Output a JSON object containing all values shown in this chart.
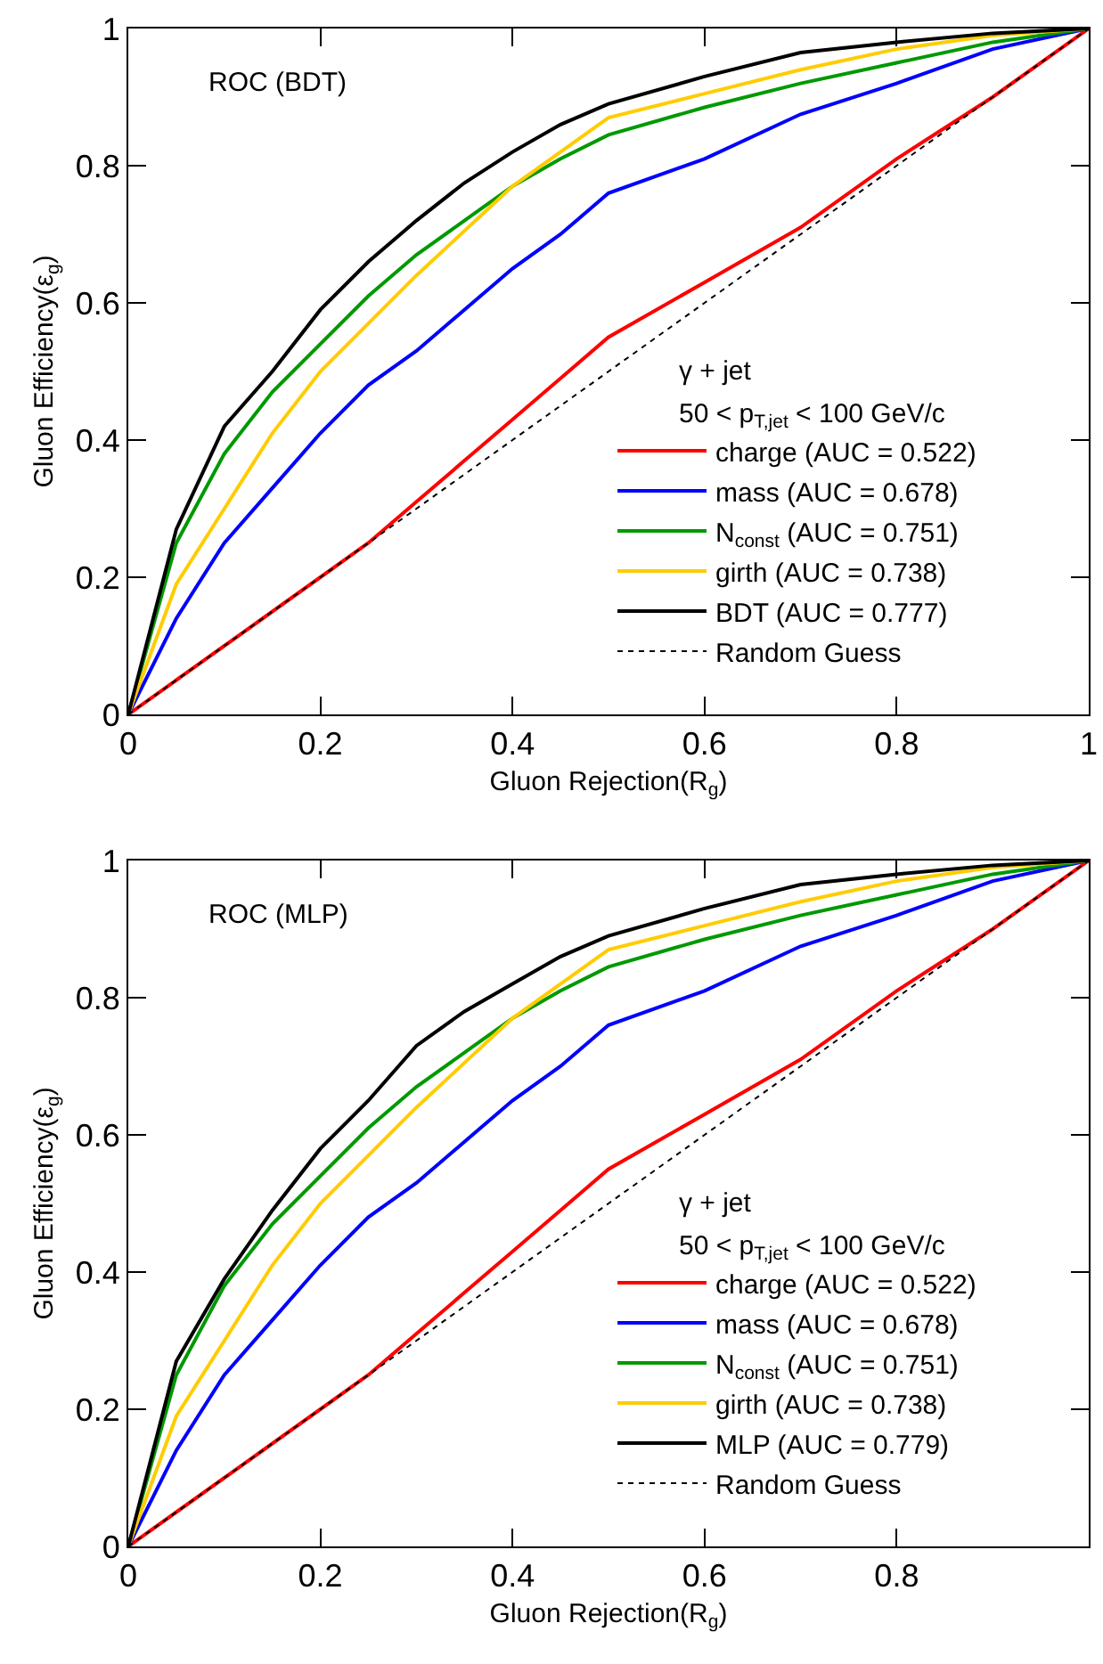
{
  "chart_data": [
    {
      "type": "line",
      "xlabel": "Gluon Rejection(R$_{g}$)",
      "ylabel": "Gluon Efficiency(ε$_{g}$)",
      "annotations": [
        "ROC (BDT)",
        "γ + jet",
        "50 < p$_{T,jet}$ < 100 GeV/c"
      ],
      "x": [
        0,
        0.05,
        0.1,
        0.15,
        0.2,
        0.25,
        0.3,
        0.35,
        0.4,
        0.45,
        0.5,
        0.6,
        0.7,
        0.8,
        0.9,
        1
      ],
      "xlim": [
        0,
        1
      ],
      "ylim": [
        0,
        1
      ],
      "xticks": [
        0,
        0.2,
        0.4,
        0.6,
        0.8,
        1
      ],
      "yticks": [
        0,
        0.2,
        0.4,
        0.6,
        0.8,
        1
      ],
      "grid": false,
      "legend": "bottom right",
      "marker": "none",
      "series": [
        {
          "name": "charge (AUC = 0.522)",
          "color": "#ff0000",
          "line_style": "solid",
          "values": [
            0,
            0.05,
            0.1,
            0.15,
            0.2,
            0.25,
            0.31,
            0.37,
            0.43,
            0.49,
            0.55,
            0.63,
            0.71,
            0.81,
            0.9,
            1
          ]
        },
        {
          "name": "mass (AUC = 0.678)",
          "color": "#0000ff",
          "line_style": "solid",
          "values": [
            0,
            0.14,
            0.25,
            0.33,
            0.41,
            0.48,
            0.53,
            0.59,
            0.65,
            0.7,
            0.76,
            0.81,
            0.875,
            0.92,
            0.97,
            1
          ]
        },
        {
          "name": "N$_{const}$ (AUC = 0.751)",
          "color": "#009900",
          "line_style": "solid",
          "values": [
            0,
            0.25,
            0.38,
            0.47,
            0.54,
            0.61,
            0.67,
            0.72,
            0.77,
            0.81,
            0.845,
            0.885,
            0.92,
            0.95,
            0.98,
            1
          ]
        },
        {
          "name": "girth (AUC = 0.738)",
          "color": "#ffcc00",
          "line_style": "solid",
          "values": [
            0,
            0.19,
            0.3,
            0.41,
            0.5,
            0.57,
            0.64,
            0.705,
            0.77,
            0.82,
            0.87,
            0.905,
            0.94,
            0.97,
            0.99,
            1
          ]
        },
        {
          "name": "BDT (AUC = 0.777)",
          "color": "#000000",
          "line_style": "solid",
          "values": [
            0,
            0.27,
            0.42,
            0.5,
            0.59,
            0.66,
            0.72,
            0.775,
            0.82,
            0.86,
            0.89,
            0.93,
            0.965,
            0.98,
            0.993,
            1
          ]
        },
        {
          "name": "Random Guess",
          "color": "#000000",
          "line_style": "dotted",
          "values": [
            0,
            0.05,
            0.1,
            0.15,
            0.2,
            0.25,
            0.3,
            0.35,
            0.4,
            0.45,
            0.5,
            0.6,
            0.7,
            0.8,
            0.9,
            1
          ]
        }
      ]
    },
    {
      "type": "line",
      "xlabel": "Gluon Rejection(R$_{g}$)",
      "ylabel": "Gluon Efficiency(ε$_{g}$)",
      "annotations": [
        "ROC (MLP)",
        "γ + jet",
        "50 < p$_{T,jet}$ < 100 GeV/c"
      ],
      "x": [
        0,
        0.05,
        0.1,
        0.15,
        0.2,
        0.25,
        0.3,
        0.35,
        0.4,
        0.45,
        0.5,
        0.6,
        0.7,
        0.8,
        0.9,
        1
      ],
      "xlim": [
        0,
        1
      ],
      "ylim": [
        0,
        1
      ],
      "xticks": [
        0,
        0.2,
        0.4,
        0.6,
        0.8,
        {
          "value": 1,
          "label": null
        }
      ],
      "yticks": [
        0,
        0.2,
        0.4,
        0.6,
        0.8,
        1
      ],
      "grid": false,
      "legend": "bottom right",
      "marker": "none",
      "series": [
        {
          "name": "charge (AUC = 0.522)",
          "color": "#ff0000",
          "line_style": "solid",
          "values": [
            0,
            0.05,
            0.1,
            0.15,
            0.2,
            0.25,
            0.31,
            0.37,
            0.43,
            0.49,
            0.55,
            0.63,
            0.71,
            0.81,
            0.9,
            1
          ]
        },
        {
          "name": "mass (AUC = 0.678)",
          "color": "#0000ff",
          "line_style": "solid",
          "values": [
            0,
            0.14,
            0.25,
            0.33,
            0.41,
            0.48,
            0.53,
            0.59,
            0.65,
            0.7,
            0.76,
            0.81,
            0.875,
            0.92,
            0.97,
            1
          ]
        },
        {
          "name": "N$_{const}$ (AUC = 0.751)",
          "color": "#009900",
          "line_style": "solid",
          "values": [
            0,
            0.25,
            0.38,
            0.47,
            0.54,
            0.61,
            0.67,
            0.72,
            0.77,
            0.81,
            0.845,
            0.885,
            0.92,
            0.95,
            0.98,
            1
          ]
        },
        {
          "name": "girth (AUC = 0.738)",
          "color": "#ffcc00",
          "line_style": "solid",
          "values": [
            0,
            0.19,
            0.3,
            0.41,
            0.5,
            0.57,
            0.64,
            0.705,
            0.77,
            0.82,
            0.87,
            0.905,
            0.94,
            0.97,
            0.99,
            1
          ]
        },
        {
          "name": "MLP (AUC = 0.779)",
          "color": "#000000",
          "line_style": "solid",
          "values": [
            0,
            0.27,
            0.39,
            0.49,
            0.58,
            0.65,
            0.73,
            0.78,
            0.82,
            0.86,
            0.89,
            0.93,
            0.965,
            0.98,
            0.993,
            1
          ]
        },
        {
          "name": "Random Guess",
          "color": "#000000",
          "line_style": "dotted",
          "values": [
            0,
            0.05,
            0.1,
            0.15,
            0.2,
            0.25,
            0.3,
            0.35,
            0.4,
            0.45,
            0.5,
            0.6,
            0.7,
            0.8,
            0.9,
            1
          ]
        }
      ]
    }
  ]
}
